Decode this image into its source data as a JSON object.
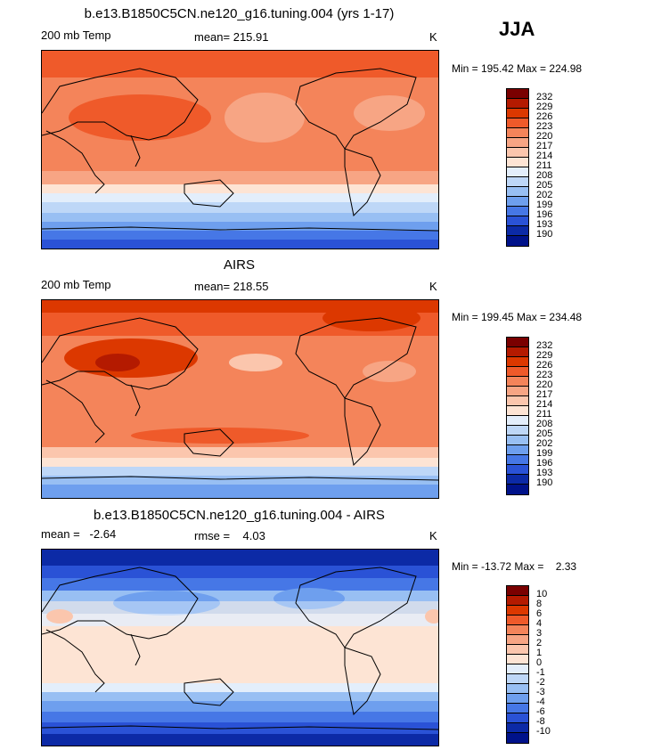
{
  "season": "JJA",
  "panels": [
    {
      "title": "b.e13.B1850C5CN.ne120_g16.tuning.004 (yrs 1-17)",
      "left_label": "200 mb Temp",
      "center_label": "mean= 215.91",
      "units": "K",
      "minmax": "Min = 195.42 Max = 224.98",
      "colorbar_labels": [
        "232",
        "229",
        "226",
        "223",
        "220",
        "217",
        "214",
        "211",
        "208",
        "205",
        "202",
        "199",
        "196",
        "193",
        "190"
      ]
    },
    {
      "title": "AIRS",
      "left_label": "200 mb Temp",
      "center_label": "mean= 218.55",
      "units": "K",
      "minmax": "Min = 199.45 Max = 234.48",
      "colorbar_labels": [
        "232",
        "229",
        "226",
        "223",
        "220",
        "217",
        "214",
        "211",
        "208",
        "205",
        "202",
        "199",
        "196",
        "193",
        "190"
      ]
    },
    {
      "title": "b.e13.B1850C5CN.ne120_g16.tuning.004 - AIRS",
      "left_label": "mean =   -2.64",
      "center_label": "rmse =    4.03",
      "units": "K",
      "minmax": "Min = -13.72 Max =    2.33",
      "colorbar_labels": [
        "10",
        "8",
        "6",
        "4",
        "3",
        "2",
        "1",
        "0",
        "-1",
        "-2",
        "-3",
        "-4",
        "-6",
        "-8",
        "-10"
      ]
    }
  ],
  "colors": {
    "warm_scale": [
      "#7a0000",
      "#b41a00",
      "#dc3800",
      "#ef5a2a",
      "#f4845a",
      "#f7a584",
      "#fbc6ad",
      "#fde4d4",
      "#e3eefb",
      "#bed7f7",
      "#98bff3",
      "#6e9fee",
      "#4677e6",
      "#2a52d6",
      "#0c2aa6",
      "#00128a"
    ],
    "land_outline": "#000000"
  }
}
